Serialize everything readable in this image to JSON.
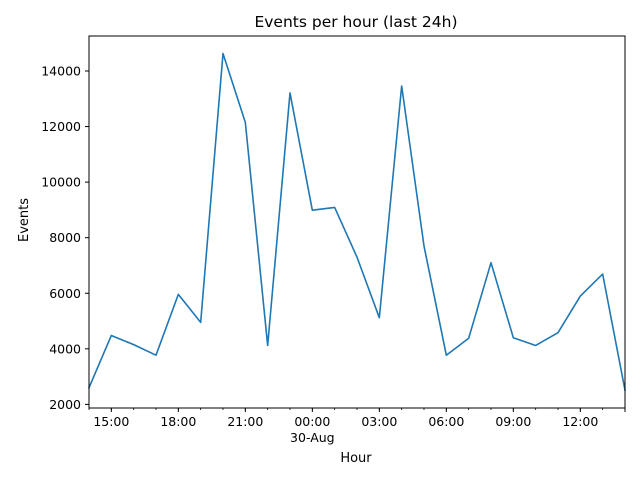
{
  "chart_data": {
    "type": "line",
    "title": "Events per hour (last 24h)",
    "xlabel": "Hour",
    "ylabel": "Events",
    "x": [
      "14:00",
      "15:00",
      "16:00",
      "17:00",
      "18:00",
      "19:00",
      "20:00",
      "21:00",
      "22:00",
      "23:00",
      "00:00",
      "01:00",
      "02:00",
      "03:00",
      "04:00",
      "05:00",
      "06:00",
      "07:00",
      "08:00",
      "09:00",
      "10:00",
      "11:00",
      "12:00",
      "13:00",
      "14:00"
    ],
    "series": [
      {
        "values": [
          2600,
          4480,
          4150,
          3770,
          5960,
          4950,
          14630,
          12150,
          4120,
          13210,
          8990,
          9090,
          7300,
          5120,
          13460,
          7700,
          3770,
          4380,
          7100,
          4400,
          4120,
          4580,
          5900,
          6690,
          2510
        ],
        "color": "#1f77b4"
      }
    ],
    "ylim": [
      1870,
      15260
    ],
    "yticks": [
      "2000",
      "4000",
      "6000",
      "8000",
      "10000",
      "12000",
      "14000"
    ],
    "xticks": [
      {
        "label": "15:00",
        "index": 1
      },
      {
        "label": "18:00",
        "index": 4
      },
      {
        "label": "21:00",
        "index": 7
      },
      {
        "label": "00:00",
        "index": 10,
        "sublabel": "30-Aug"
      },
      {
        "label": "03:00",
        "index": 13
      },
      {
        "label": "06:00",
        "index": 16
      },
      {
        "label": "09:00",
        "index": 19
      },
      {
        "label": "12:00",
        "index": 22
      }
    ],
    "grid": false,
    "legend": "none"
  }
}
